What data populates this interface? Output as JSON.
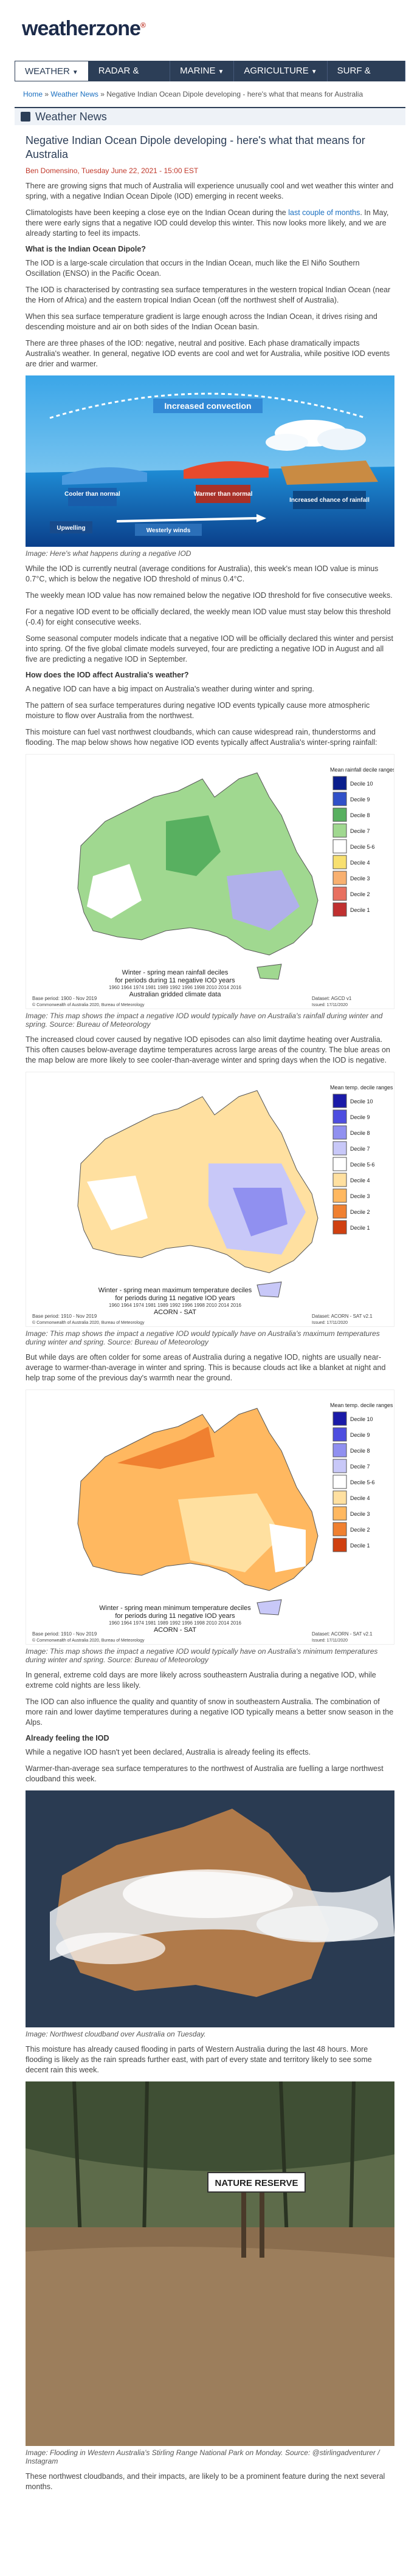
{
  "site": {
    "logo_main": "weatherzone",
    "logo_mark": "®"
  },
  "nav": {
    "items": [
      {
        "label": "WEATHER"
      },
      {
        "label": "RADAR & MAPS"
      },
      {
        "label": "MARINE"
      },
      {
        "label": "AGRICULTURE"
      },
      {
        "label": "SURF & SNOW"
      }
    ]
  },
  "breadcrumb": {
    "home": "Home",
    "sep": "»",
    "news": "Weather News",
    "current": "Negative Indian Ocean Dipole developing - here's what that means for Australia"
  },
  "section": {
    "title": "Weather News"
  },
  "article": {
    "title": "Negative Indian Ocean Dipole developing - here's what that means for Australia",
    "byline": "Ben Domensino, Tuesday June 22, 2021 - 15:00 EST",
    "p1": "There are growing signs that much of Australia will experience unusually cool and wet weather this winter and spring, with a negative Indian Ocean Dipole (IOD) emerging in recent weeks.",
    "p2_pre": "Climatologists have been keeping a close eye on the Indian Ocean during the ",
    "p2_link": "last couple of months",
    "p2_post": ". In May, there were early signs that a negative IOD could develop this winter. This now looks more likely, and we are already starting to feel its impacts.",
    "h_what": "What is the Indian Ocean Dipole?",
    "p3": "The IOD is a large-scale circulation that occurs in the Indian Ocean, much like the El Niño Southern Oscillation (ENSO) in the Pacific Ocean.",
    "p4": "The IOD is characterised by contrasting sea surface temperatures in the western tropical Indian Ocean (near the Horn of Africa) and the eastern tropical Indian Ocean (off the northwest shelf of Australia).",
    "p5": "When this sea surface temperature gradient is large enough across the Indian Ocean, it drives rising and descending moisture and air on both sides of the Indian Ocean basin.",
    "p6": "There are three phases of the IOD: negative, neutral and positive. Each phase dramatically impacts Australia's weather. In general, negative IOD events are cool and wet for Australia, while positive IOD events are drier and warmer.",
    "diagram": {
      "increased_convection": "Increased convection",
      "cooler": "Cooler than normal",
      "warmer": "Warmer than normal",
      "increased_rain": "Increased chance of rainfall",
      "westerly_winds": "Westerly winds",
      "upwelling": "Upwelling"
    },
    "cap1": "Image: Here's what happens during a negative IOD",
    "p7": "While the IOD is currently neutral (average conditions for Australia), this week's mean IOD value is minus 0.7°C, which is below the negative IOD threshold of minus 0.4°C.",
    "p8": "The weekly mean IOD value has now remained below the negative IOD threshold for five consecutive weeks.",
    "p9": "For a negative IOD event to be officially declared, the weekly mean IOD value must stay below this threshold (-0.4) for eight consecutive weeks.",
    "p10": "Some seasonal computer models indicate that a negative IOD will be officially declared this winter and persist into spring. Of the five global climate models surveyed, four are predicting a negative IOD in August and all five are predicting a negative IOD in September.",
    "h_how": "How does the IOD affect Australia's weather?",
    "p11": "A negative IOD can have a big impact on Australia's weather during winter and spring.",
    "p12": "The pattern of sea surface temperatures during negative IOD events typically cause more atmospheric moisture to flow over Australia from the northwest.",
    "p13": "This moisture can fuel vast northwest cloudbands, which can cause widespread rain, thunderstorms and flooding. The map below shows how negative IOD events typically affect Australia's winter-spring rainfall:",
    "map1": {
      "legend_title": "Mean rainfall decile ranges",
      "title1": "Winter - spring mean rainfall deciles",
      "title2": "for periods during 11 negative IOD years",
      "years": "1960 1964 1974 1981 1989 1992 1996 1998 2010 2014 2016",
      "title3": "Australian gridded climate data",
      "left_note": "Base period: 1900 - Nov 2019",
      "right_note": "Dataset: AGCD v1",
      "copyright": "© Commonwealth of Australia 2020, Bureau of Meteorology",
      "issued": "Issued: 17/11/2020"
    },
    "cap2": "Image: This map shows the impact a negative IOD would typically have on Australia's rainfall during winter and spring. Source: Bureau of Meteorology",
    "p14": "The increased cloud cover caused by negative IOD episodes can also limit daytime heating over Australia. This often causes below-average daytime temperatures across large areas of the country. The blue areas on the map below are more likely to see cooler-than-average winter and spring days when the IOD is negative.",
    "map2": {
      "legend_title": "Mean temp. decile ranges",
      "title1": "Winter - spring mean maximum temperature deciles",
      "title2": "for periods during 11 negative IOD years",
      "years": "1960 1964 1974 1981 1989 1992 1996 1998 2010 2014 2016",
      "title3": "ACORN - SAT",
      "left_note": "Base period: 1910 - Nov 2019",
      "right_note": "Dataset: ACORN - SAT v2.1",
      "copyright": "© Commonwealth of Australia 2020, Bureau of Meteorology",
      "issued": "Issued: 17/11/2020"
    },
    "cap3": "Image: This map shows the impact a negative IOD would typically have on Australia's maximum temperatures during winter and spring. Source: Bureau of Meteorology",
    "p15": "But while days are often colder for some areas of Australia during a negative IOD, nights are usually near-average to warmer-than-average in winter and spring. This is because clouds act like a blanket at night and help trap some of the previous day's warmth near the ground.",
    "map3": {
      "legend_title": "Mean temp. decile ranges",
      "title1": "Winter - spring mean minimum temperature deciles",
      "title2": "for periods during 11 negative IOD years",
      "years": "1960 1964 1974 1981 1989 1992 1996 1998 2010 2014 2016",
      "title3": "ACORN - SAT",
      "left_note": "Base period: 1910 - Nov 2019",
      "right_note": "Dataset: ACORN - SAT v2.1",
      "copyright": "© Commonwealth of Australia 2020, Bureau of Meteorology",
      "issued": "Issued: 17/11/2020"
    },
    "legend_deciles": [
      {
        "label": "Decile 10",
        "color": "#1a1aa8"
      },
      {
        "label": "Decile 9",
        "color": "#4d4de0"
      },
      {
        "label": "Decile 8",
        "color": "#9090f0"
      },
      {
        "label": "Decile 7",
        "color": "#c8c8f8"
      },
      {
        "label": "Decile 5-6",
        "color": "#ffffff"
      },
      {
        "label": "Decile 4",
        "color": "#ffe0a0"
      },
      {
        "label": "Decile 3",
        "color": "#ffb860"
      },
      {
        "label": "Decile 2",
        "color": "#f08030"
      },
      {
        "label": "Decile 1",
        "color": "#d04010"
      }
    ],
    "legend_rain": [
      {
        "label": "Decile 10",
        "color": "#0a1e8c"
      },
      {
        "label": "Decile 9",
        "color": "#3050c8"
      },
      {
        "label": "Decile 8",
        "color": "#58b060"
      },
      {
        "label": "Decile 7",
        "color": "#a0d890"
      },
      {
        "label": "Decile 5-6",
        "color": "#ffffff"
      },
      {
        "label": "Decile 4",
        "color": "#f8e070"
      },
      {
        "label": "Decile 3",
        "color": "#f8b070"
      },
      {
        "label": "Decile 2",
        "color": "#e87060"
      },
      {
        "label": "Decile 1",
        "color": "#c03030"
      }
    ],
    "cap4": "Image: This map shows the impact a negative IOD would typically have on Australia's minimum temperatures during winter and spring. Source: Bureau of Meteorology",
    "p16": "In general, extreme cold days are more likely across southeastern Australia during a negative IOD, while extreme cold nights are less likely.",
    "p17": "The IOD can also influence the quality and quantity of snow in southeastern Australia. The combination of more rain and lower daytime temperatures during a negative IOD typically means a better snow season in the Alps.",
    "h_already": "Already feeling the IOD",
    "p18": "While a negative IOD hasn't yet been declared, Australia is already feeling its effects.",
    "p19": "Warmer-than-average sea surface temperatures to the northwest of Australia are fuelling a large northwest cloudband this week.",
    "cap5": "Image: Northwest cloudband over Australia on Tuesday.",
    "p20": "This moisture has already caused flooding in parts of Western Australia during the last 48 hours. More flooding is likely as the rain spreads further east, with part of every state and territory likely to see some decent rain this week.",
    "sign_text": "NATURE RESERVE",
    "cap6": "Image: Flooding in Western Australia's Stirling Range National Park on Monday. Source: @stirlingadventurer / Instagram",
    "p21": "These northwest cloudbands, and their impacts, are likely to be a prominent feature during the next several months."
  }
}
